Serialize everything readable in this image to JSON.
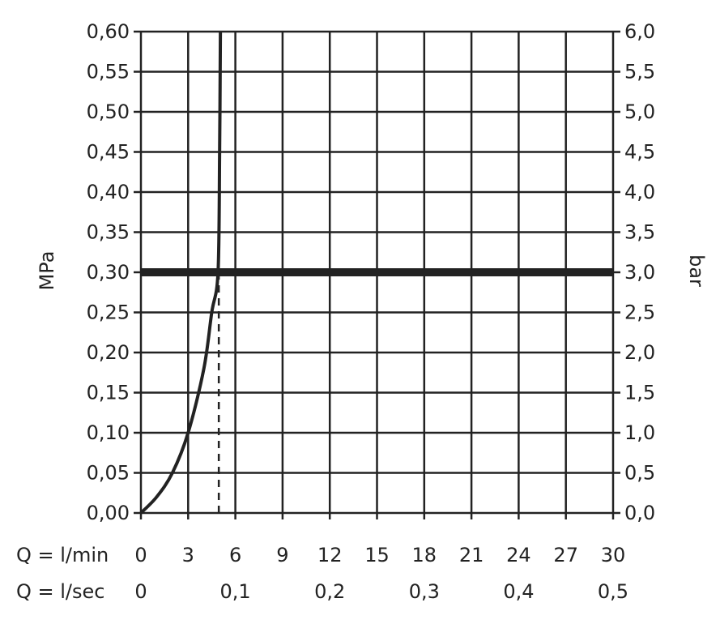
{
  "chart_data": {
    "type": "line",
    "title": "",
    "ylabel_left": "MPa",
    "ylabel_right": "bar",
    "ylim": [
      0,
      0.6
    ],
    "xlim": [
      0,
      30
    ],
    "grid": true,
    "y_ticks_left": [
      "0,00",
      "0,05",
      "0,10",
      "0,15",
      "0,20",
      "0,25",
      "0,30",
      "0,35",
      "0,40",
      "0,45",
      "0,50",
      "0,55",
      "0,60"
    ],
    "y_ticks_right": [
      "0,0",
      "0,5",
      "1,0",
      "1,5",
      "2,0",
      "2,5",
      "3,0",
      "3,5",
      "4,0",
      "4,5",
      "5,0",
      "5,5",
      "6,0"
    ],
    "x_axis_lmin": {
      "label": "Q = l/min",
      "ticks": [
        "0",
        "3",
        "6",
        "9",
        "12",
        "15",
        "18",
        "21",
        "24",
        "27",
        "30"
      ],
      "values": [
        0,
        3,
        6,
        9,
        12,
        15,
        18,
        21,
        24,
        27,
        30
      ]
    },
    "x_axis_lsec": {
      "label": "Q = l/sec",
      "ticks": [
        "0",
        "0,1",
        "0,2",
        "0,3",
        "0,4",
        "0,5"
      ],
      "values": [
        0,
        6,
        12,
        18,
        24,
        30
      ]
    },
    "series": [
      {
        "x": [
          0,
          1,
          2,
          3,
          4,
          4.5,
          4.9,
          5.0,
          5.05
        ],
        "y": [
          0,
          0.02,
          0.05,
          0.1,
          0.18,
          0.25,
          0.3,
          0.45,
          0.6
        ]
      }
    ],
    "reference_hline": {
      "y": 0.3
    },
    "reference_vline_dashed": {
      "x": 5,
      "y_from": 0,
      "y_to": 0.3
    },
    "colors": {
      "line": "#222222",
      "grid": "#222222"
    }
  }
}
